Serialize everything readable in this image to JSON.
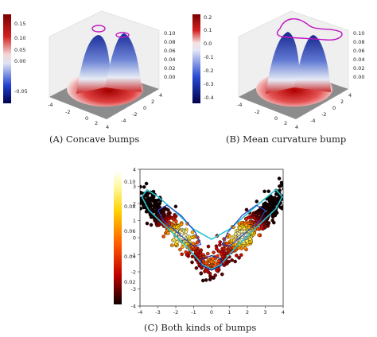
{
  "captions": {
    "a": "(A) Concave bumps",
    "b": "(B) Mean curvature bump",
    "c": "(C) Both kinds of bumps"
  },
  "chart_data": [
    {
      "type": "surface",
      "panel": "A",
      "colorbar": {
        "ticks": [
          "0.15",
          "0.10",
          "0.05",
          "0.00",
          "-0.05"
        ],
        "colormap": "seismic"
      },
      "x_ticks": [
        "-4",
        "-2",
        "0",
        "2",
        "4"
      ],
      "y_ticks": [
        "4",
        "2",
        "0",
        "-2",
        "-4"
      ],
      "z_ticks": [
        "0.10",
        "0.08",
        "0.06",
        "0.04",
        "0.02",
        "0.00"
      ]
    },
    {
      "type": "surface",
      "panel": "B",
      "colorbar": {
        "ticks": [
          "0.2",
          "0.1",
          "0.0",
          "-0.1",
          "-0.2",
          "-0.3",
          "-0.4"
        ],
        "colormap": "seismic"
      },
      "x_ticks": [
        "-4",
        "-2",
        "0",
        "2",
        "4"
      ],
      "y_ticks": [
        "4",
        "2",
        "0",
        "-2",
        "-4"
      ],
      "z_ticks": [
        "0.10",
        "0.08",
        "0.06",
        "0.04",
        "0.02",
        "0.00"
      ]
    },
    {
      "type": "scatter",
      "panel": "C",
      "xlim": [
        -4,
        4
      ],
      "ylim": [
        -4,
        4
      ],
      "x_ticks": [
        "-4",
        "-3",
        "-2",
        "-1",
        "0",
        "1",
        "2",
        "3",
        "4"
      ],
      "y_ticks": [
        "4",
        "3",
        "2",
        "1",
        "0",
        "-1",
        "-2",
        "-3",
        "-4"
      ],
      "colorbar": {
        "ticks": [
          "0.10",
          "0.08",
          "0.06",
          "0.04",
          "0.02"
        ],
        "colormap": "hot"
      },
      "grid": false,
      "contour_colors": [
        "#27c3d3",
        "#2744c8",
        "#1a24a0"
      ]
    }
  ]
}
